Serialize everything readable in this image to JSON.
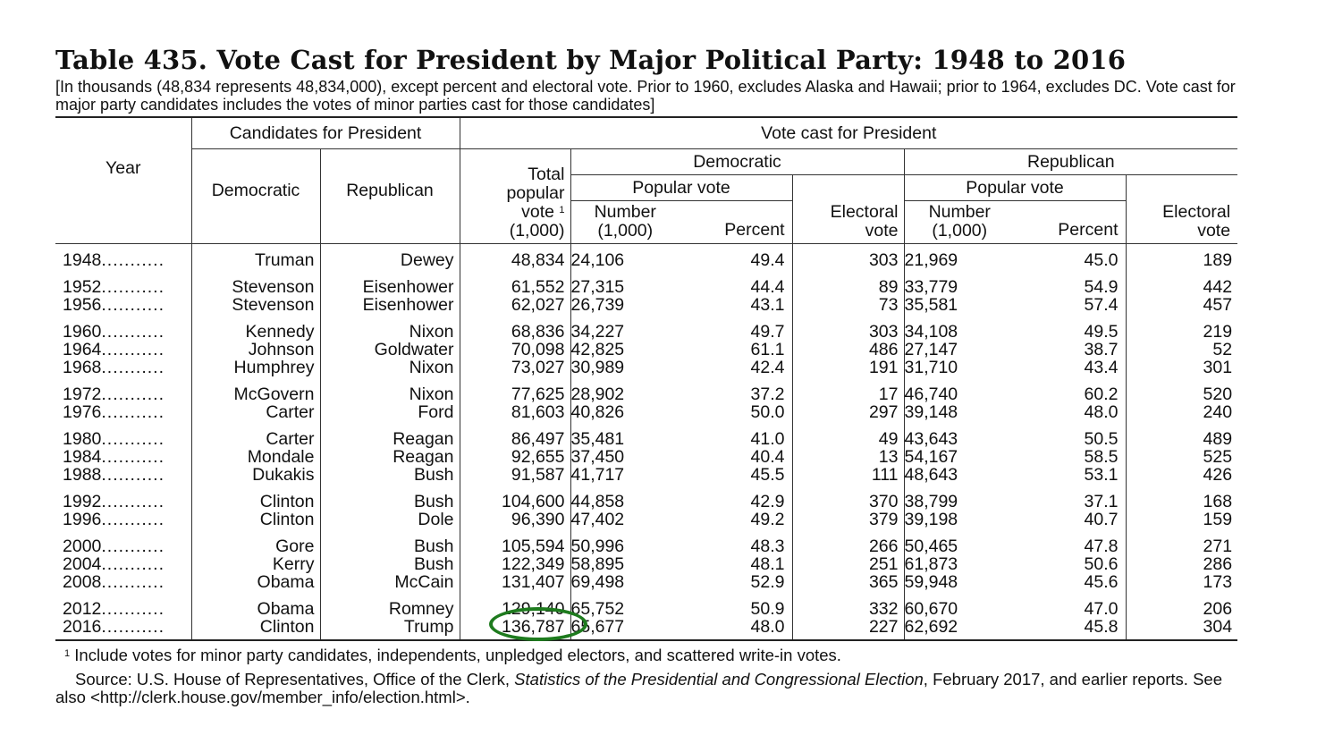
{
  "title": "Table 435. Vote Cast for President by Major Political Party: 1948 to 2016",
  "headnote": "[In thousands (48,834 represents 48,834,000), except percent and electoral vote. Prior to 1960, excludes Alaska and Hawaii; prior to 1964, excludes DC. Vote cast for major party candidates includes the votes of minor parties cast for those candidates]",
  "headers": {
    "year": "Year",
    "candidates": "Candidates for President",
    "democratic": "Democratic",
    "republican": "Republican",
    "total_popular_vote": "Total popular vote",
    "total_unit": "(1,000)",
    "vote_cast": "Vote cast for President",
    "dem_group": "Democratic",
    "rep_group": "Republican",
    "popular_vote": "Popular vote",
    "number": "Number",
    "number_unit": "(1,000)",
    "percent": "Percent",
    "electoral": "Electoral",
    "vote": "vote",
    "footnote_mark": "1"
  },
  "rows": [
    {
      "year": "1948",
      "dem": "Truman",
      "rep": "Dewey",
      "total": "48,834",
      "dnum": "24,106",
      "dpct": "49.4",
      "delec": "303",
      "rnum": "21,969",
      "rpct": "45.0",
      "relec": "189",
      "group_start": true
    },
    {
      "year": "1952",
      "dem": "Stevenson",
      "rep": "Eisenhower",
      "total": "61,552",
      "dnum": "27,315",
      "dpct": "44.4",
      "delec": "89",
      "rnum": "33,779",
      "rpct": "54.9",
      "relec": "442",
      "group_start": true
    },
    {
      "year": "1956",
      "dem": "Stevenson",
      "rep": "Eisenhower",
      "total": "62,027",
      "dnum": "26,739",
      "dpct": "43.1",
      "delec": "73",
      "rnum": "35,581",
      "rpct": "57.4",
      "relec": "457",
      "group_start": false
    },
    {
      "year": "1960",
      "dem": "Kennedy",
      "rep": "Nixon",
      "total": "68,836",
      "dnum": "34,227",
      "dpct": "49.7",
      "delec": "303",
      "rnum": "34,108",
      "rpct": "49.5",
      "relec": "219",
      "group_start": true
    },
    {
      "year": "1964",
      "dem": "Johnson",
      "rep": "Goldwater",
      "total": "70,098",
      "dnum": "42,825",
      "dpct": "61.1",
      "delec": "486",
      "rnum": "27,147",
      "rpct": "38.7",
      "relec": "52",
      "group_start": false
    },
    {
      "year": "1968",
      "dem": "Humphrey",
      "rep": "Nixon",
      "total": "73,027",
      "dnum": "30,989",
      "dpct": "42.4",
      "delec": "191",
      "rnum": "31,710",
      "rpct": "43.4",
      "relec": "301",
      "group_start": false
    },
    {
      "year": "1972",
      "dem": "McGovern",
      "rep": "Nixon",
      "total": "77,625",
      "dnum": "28,902",
      "dpct": "37.2",
      "delec": "17",
      "rnum": "46,740",
      "rpct": "60.2",
      "relec": "520",
      "group_start": true
    },
    {
      "year": "1976",
      "dem": "Carter",
      "rep": "Ford",
      "total": "81,603",
      "dnum": "40,826",
      "dpct": "50.0",
      "delec": "297",
      "rnum": "39,148",
      "rpct": "48.0",
      "relec": "240",
      "group_start": false
    },
    {
      "year": "1980",
      "dem": "Carter",
      "rep": "Reagan",
      "total": "86,497",
      "dnum": "35,481",
      "dpct": "41.0",
      "delec": "49",
      "rnum": "43,643",
      "rpct": "50.5",
      "relec": "489",
      "group_start": true
    },
    {
      "year": "1984",
      "dem": "Mondale",
      "rep": "Reagan",
      "total": "92,655",
      "dnum": "37,450",
      "dpct": "40.4",
      "delec": "13",
      "rnum": "54,167",
      "rpct": "58.5",
      "relec": "525",
      "group_start": false
    },
    {
      "year": "1988",
      "dem": "Dukakis",
      "rep": "Bush",
      "total": "91,587",
      "dnum": "41,717",
      "dpct": "45.5",
      "delec": "111",
      "rnum": "48,643",
      "rpct": "53.1",
      "relec": "426",
      "group_start": false
    },
    {
      "year": "1992",
      "dem": "Clinton",
      "rep": "Bush",
      "total": "104,600",
      "dnum": "44,858",
      "dpct": "42.9",
      "delec": "370",
      "rnum": "38,799",
      "rpct": "37.1",
      "relec": "168",
      "group_start": true
    },
    {
      "year": "1996",
      "dem": "Clinton",
      "rep": "Dole",
      "total": "96,390",
      "dnum": "47,402",
      "dpct": "49.2",
      "delec": "379",
      "rnum": "39,198",
      "rpct": "40.7",
      "relec": "159",
      "group_start": false
    },
    {
      "year": "2000",
      "dem": "Gore",
      "rep": "Bush",
      "total": "105,594",
      "dnum": "50,996",
      "dpct": "48.3",
      "delec": "266",
      "rnum": "50,465",
      "rpct": "47.8",
      "relec": "271",
      "group_start": true
    },
    {
      "year": "2004",
      "dem": "Kerry",
      "rep": "Bush",
      "total": "122,349",
      "dnum": "58,895",
      "dpct": "48.1",
      "delec": "251",
      "rnum": "61,873",
      "rpct": "50.6",
      "relec": "286",
      "group_start": false
    },
    {
      "year": "2008",
      "dem": "Obama",
      "rep": "McCain",
      "total": "131,407",
      "dnum": "69,498",
      "dpct": "52.9",
      "delec": "365",
      "rnum": "59,948",
      "rpct": "45.6",
      "relec": "173",
      "group_start": false
    },
    {
      "year": "2012",
      "dem": "Obama",
      "rep": "Romney",
      "total": "129,140",
      "dnum": "65,752",
      "dpct": "50.9",
      "delec": "332",
      "rnum": "60,670",
      "rpct": "47.0",
      "relec": "206",
      "group_start": true
    },
    {
      "year": "2016",
      "dem": "Clinton",
      "rep": "Trump",
      "total": "136,787",
      "dnum": "65,677",
      "dpct": "48.0",
      "delec": "227",
      "rnum": "62,692",
      "rpct": "45.8",
      "relec": "304",
      "group_start": false,
      "highlight_total": true
    }
  ],
  "dot_leader": "...........",
  "footnote": "Include votes for minor party candidates, independents, unpledged electors, and scattered write-in votes.",
  "source_prefix": "Source: U.S. House of Representatives, Office of the Clerk, ",
  "source_italic": "Statistics of the Presidential and Congressional Election",
  "source_suffix": ", February 2017, and earlier reports. See also <http://clerk.house.gov/member_info/election.html>.",
  "highlight_color": "#1e7b1e"
}
